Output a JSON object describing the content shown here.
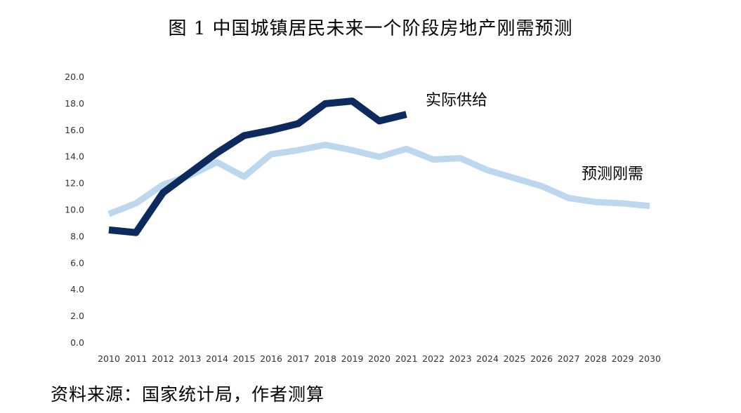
{
  "title": "图 1  中国城镇居民未来一个阶段房地产刚需预测",
  "source": "资料来源：国家统计局，作者测算",
  "chart_data": {
    "type": "line",
    "title": "图 1  中国城镇居民未来一个阶段房地产刚需预测",
    "xlabel": "",
    "ylabel": "",
    "ylim": [
      0,
      20
    ],
    "yticks": [
      "0.0",
      "2.0",
      "4.0",
      "6.0",
      "8.0",
      "10.0",
      "12.0",
      "14.0",
      "16.0",
      "18.0",
      "20.0"
    ],
    "categories": [
      "2010",
      "2011",
      "2012",
      "2013",
      "2014",
      "2015",
      "2016",
      "2017",
      "2018",
      "2019",
      "2020",
      "2021",
      "2022",
      "2023",
      "2024",
      "2025",
      "2026",
      "2027",
      "2028",
      "2029",
      "2030"
    ],
    "grid": false,
    "legend": "inline labels",
    "series": [
      {
        "name": "预测刚需",
        "color": "#bdd7ee",
        "values": [
          9.7,
          10.5,
          11.9,
          12.6,
          13.6,
          12.5,
          14.2,
          14.5,
          14.9,
          14.5,
          14.0,
          14.6,
          13.8,
          13.9,
          13.0,
          12.4,
          11.8,
          10.9,
          10.6,
          10.5,
          10.3
        ]
      },
      {
        "name": "实际供给",
        "color": "#0d2a5e",
        "values": [
          8.5,
          8.3,
          11.3,
          12.8,
          14.3,
          15.6,
          16.0,
          16.5,
          18.0,
          18.2,
          16.7,
          17.2,
          null,
          null,
          null,
          null,
          null,
          null,
          null,
          null,
          null
        ]
      }
    ]
  }
}
